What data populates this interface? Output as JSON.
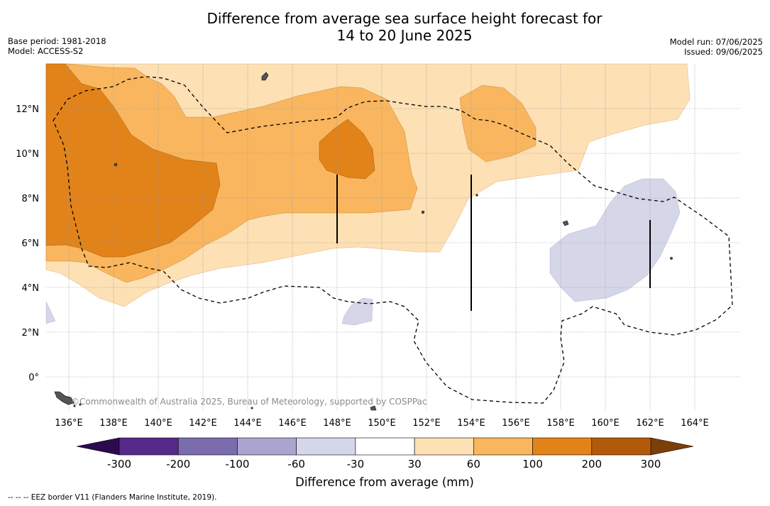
{
  "title_line1": "Difference from average sea surface height forecast for",
  "title_line2": "14 to 20 June 2025",
  "base_period": "Base period: 1981-2018",
  "model": "Model: ACCESS-S2",
  "model_run": "Model run: 07/06/2025",
  "issued": "Issued: 09/06/2025",
  "copyright": "©Commonwealth of Australia 2025, Bureau of Meteorology, supported by COSPPac",
  "footnote": "--  --  -- EEZ border V11 (Flanders Marine Institute, 2019).",
  "lat_labels": [
    "12°N",
    "10°N",
    "8°N",
    "6°N",
    "4°N",
    "2°N",
    "0°"
  ],
  "lon_labels": [
    "136°E",
    "138°E",
    "140°E",
    "142°E",
    "144°E",
    "146°E",
    "148°E",
    "150°E",
    "152°E",
    "154°E",
    "156°E",
    "158°E",
    "160°E",
    "162°E",
    "164°E"
  ],
  "colorbar": {
    "title": "Difference from average (mm)",
    "ticks": [
      "-300",
      "-200",
      "-100",
      "-60",
      "-30",
      "30",
      "60",
      "100",
      "200",
      "300"
    ],
    "colors": [
      "#552a8a",
      "#7b6cae",
      "#aaa5d0",
      "#d6d6e9",
      "#ffffff",
      "#fde0b4",
      "#f9b65f",
      "#e2831a",
      "#b35a0a"
    ],
    "under_color": "#2d0a4e",
    "over_color": "#7d3f0a"
  },
  "colors": {
    "light_orange": "#fde0b4",
    "mid_orange": "#f9b65f",
    "dark_orange": "#e2831a",
    "light_purple": "#d6d6e9"
  }
}
